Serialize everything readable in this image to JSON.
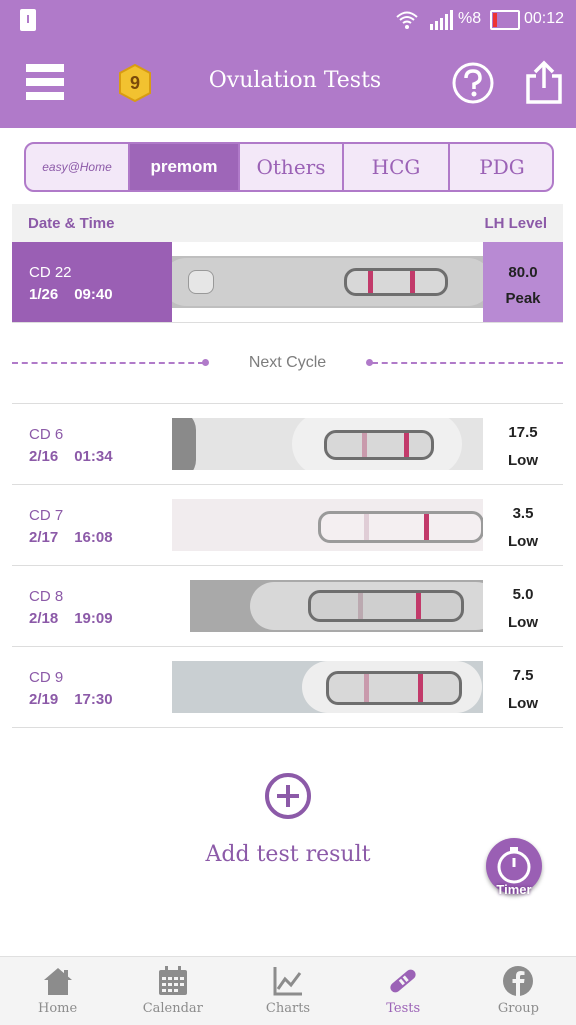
{
  "status_bar": {
    "battery_percent": "%8",
    "time": "00:12"
  },
  "app_bar": {
    "title": "Ovulation Tests",
    "level_badge": "9"
  },
  "brand_tabs": [
    {
      "label": "easy@Home",
      "selected": false
    },
    {
      "label": "premom",
      "selected": true
    },
    {
      "label": "Others",
      "selected": false
    },
    {
      "label": "HCG",
      "selected": false
    },
    {
      "label": "PDG",
      "selected": false
    }
  ],
  "table": {
    "col_datetime": "Date & Time",
    "col_lh": "LH Level"
  },
  "peak_row": {
    "cd": "CD 22",
    "date": "1/26",
    "time": "09:40",
    "lh_value": "80.0",
    "lh_status": "Peak"
  },
  "divider": {
    "label": "Next Cycle"
  },
  "rows": [
    {
      "cd": "CD 6",
      "date": "2/16",
      "time": "01:34",
      "lh_value": "17.5",
      "lh_status": "Low"
    },
    {
      "cd": "CD 7",
      "date": "2/17",
      "time": "16:08",
      "lh_value": "3.5",
      "lh_status": "Low"
    },
    {
      "cd": "CD 8",
      "date": "2/18",
      "time": "19:09",
      "lh_value": "5.0",
      "lh_status": "Low"
    },
    {
      "cd": "CD 9",
      "date": "2/19",
      "time": "17:30",
      "lh_value": "7.5",
      "lh_status": "Low"
    }
  ],
  "add": {
    "label": "Add test result"
  },
  "timer": {
    "label": "Timer"
  },
  "nav": [
    {
      "label": "Home",
      "icon": "home-icon",
      "active": false
    },
    {
      "label": "Calendar",
      "icon": "calendar-icon",
      "active": false
    },
    {
      "label": "Charts",
      "icon": "chart-icon",
      "active": false
    },
    {
      "label": "Tests",
      "icon": "test-strip-icon",
      "active": true
    },
    {
      "label": "Group",
      "icon": "facebook-icon",
      "active": false
    }
  ],
  "colors": {
    "brand_purple": "#b07ac9",
    "dark_purple": "#9a5fb4",
    "text_purple": "#8c5aa8",
    "test_line": "#c23a6a"
  }
}
